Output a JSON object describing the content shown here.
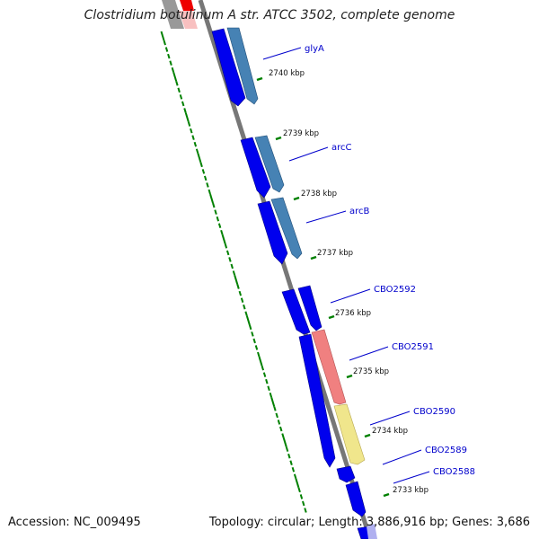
{
  "title": "Clostridium botulinum A str. ATCC 3502, complete genome",
  "footer": {
    "accession": "Accession: NC_009495",
    "summary": "Topology: circular; Length: 3,886,916 bp; Genes: 3,686"
  },
  "colors": {
    "strand_a": "#0000ee",
    "strand_b": "#4682b4",
    "red": "#f08080",
    "yellow": "#f0e68c",
    "tick": "#008000",
    "label": "#0000cc",
    "backbone": "#777777"
  },
  "genes": [
    {
      "name": "glyA"
    },
    {
      "name": "arcC"
    },
    {
      "name": "arcB"
    },
    {
      "name": "CBO2592"
    },
    {
      "name": "CBO2591"
    },
    {
      "name": "CBO2590"
    },
    {
      "name": "CBO2589"
    },
    {
      "name": "CBO2588"
    }
  ],
  "kbp_ticks": [
    {
      "label": "2740 kbp"
    },
    {
      "label": "2739 kbp"
    },
    {
      "label": "2738 kbp"
    },
    {
      "label": "2737 kbp"
    },
    {
      "label": "2736 kbp"
    },
    {
      "label": "2735 kbp"
    },
    {
      "label": "2734 kbp"
    },
    {
      "label": "2733 kbp"
    }
  ]
}
